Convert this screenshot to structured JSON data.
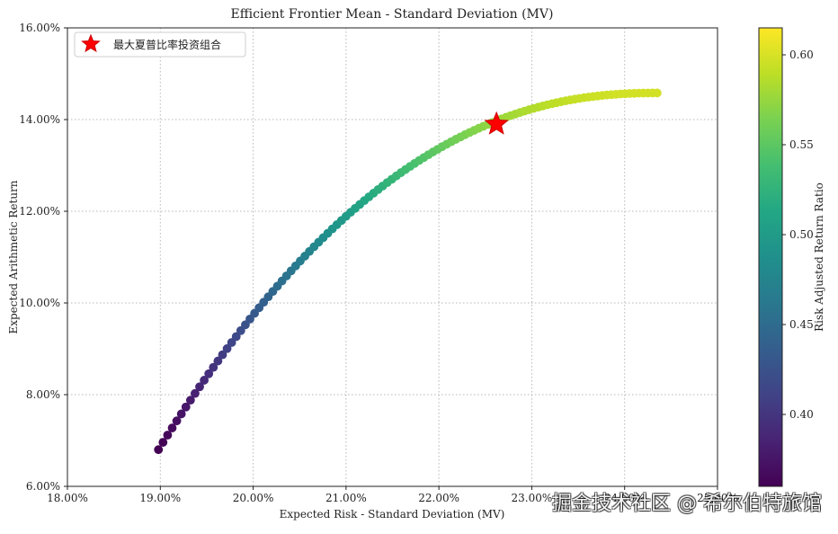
{
  "chart_data": {
    "type": "scatter",
    "title": "Efficient Frontier Mean - Standard Deviation (MV)",
    "xlabel": "Expected Risk - Standard Deviation (MV)",
    "ylabel": "Expected Arithmetic Return",
    "xlim": [
      18.0,
      25.0
    ],
    "ylim": [
      6.0,
      16.0
    ],
    "xticks": [
      "18.00%",
      "19.00%",
      "20.00%",
      "21.00%",
      "22.00%",
      "23.00%",
      "24.00%",
      "25.00%"
    ],
    "yticks": [
      "6.00%",
      "8.00%",
      "10.00%",
      "12.00%",
      "14.00%",
      "16.00%"
    ],
    "grid": true,
    "legend": {
      "location": "top-left",
      "entries": [
        {
          "label": "最大夏普比率投资组合",
          "marker": "star",
          "color": "#ff0000"
        }
      ]
    },
    "colorbar": {
      "label": "Risk Adjusted Return Ratio",
      "range": [
        0.36,
        0.615
      ],
      "ticks": [
        "0.40",
        "0.45",
        "0.50",
        "0.55",
        "0.60"
      ],
      "colormap": "viridis"
    },
    "frontier": {
      "x_start": 18.98,
      "x_end": 24.35,
      "y_start": 6.8,
      "y_end": 14.58,
      "count": 110,
      "ratio_start": 0.36,
      "ratio_end": 0.598
    },
    "max_sharpe_point": {
      "x": 22.62,
      "y": 13.9,
      "ratio": 0.615
    }
  },
  "watermark": "掘金技术社区 @ 希尔伯特旅馆"
}
